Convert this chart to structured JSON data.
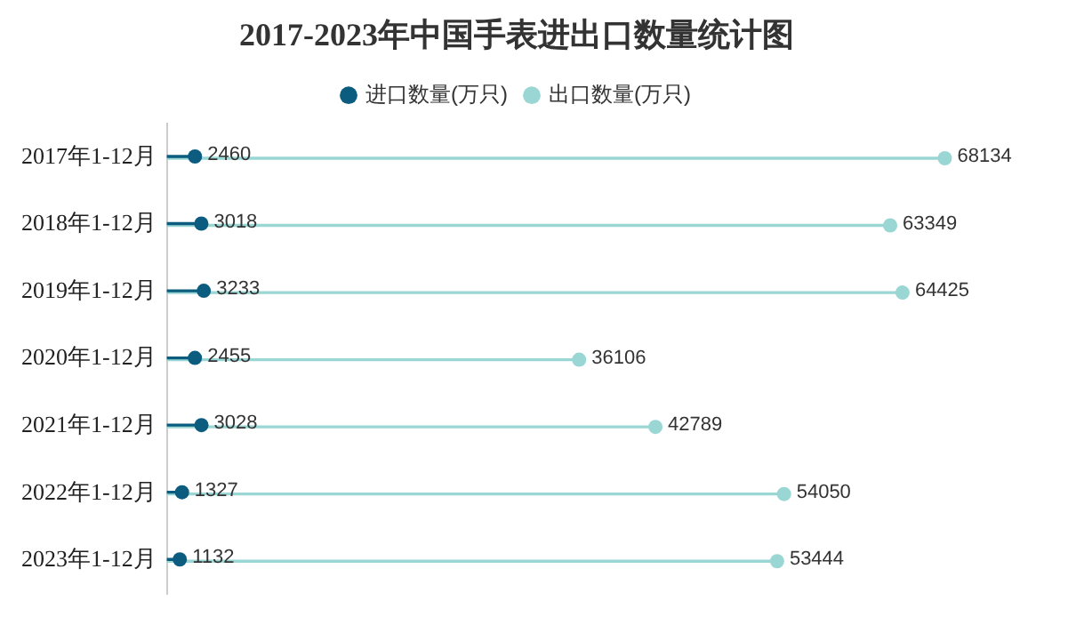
{
  "chart_data": {
    "type": "lollipop",
    "title": "2017-2023年中国手表进出口数量统计图",
    "orientation": "horizontal",
    "categories": [
      "2017年1-12月",
      "2018年1-12月",
      "2019年1-12月",
      "2020年1-12月",
      "2021年1-12月",
      "2022年1-12月",
      "2023年1-12月"
    ],
    "series": [
      {
        "name": "进口数量(万只)",
        "color": "#0b5c7f",
        "values": [
          2460,
          3018,
          3233,
          2455,
          3028,
          1327,
          1132
        ]
      },
      {
        "name": "出口数量(万只)",
        "color": "#99d6d4",
        "values": [
          68134,
          63349,
          64425,
          36106,
          42789,
          54050,
          53444
        ]
      }
    ],
    "data_labels": true,
    "legend": "top",
    "grid": false,
    "marker": "circle",
    "tick_labels": "y"
  }
}
